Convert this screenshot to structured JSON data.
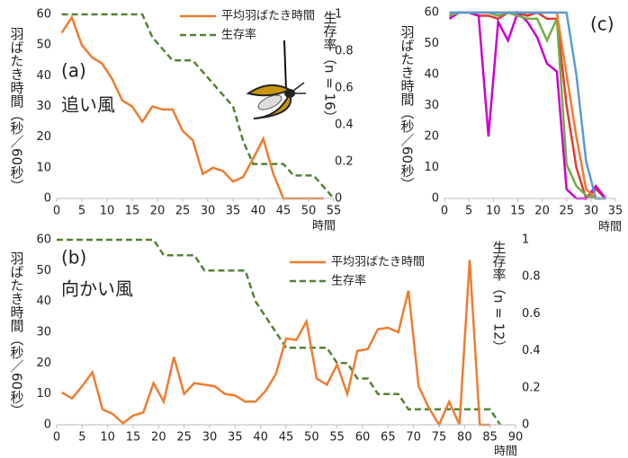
{
  "chart_data": [
    {
      "type": "line",
      "annotations": [
        "(a)",
        "追い風"
      ],
      "xlabel": "時間",
      "ylabel": "羽ばたき時間（秒／60秒）",
      "y2label": "生存率（n = 16）",
      "xlim": [
        0,
        55
      ],
      "xticks": [
        0,
        5,
        10,
        15,
        20,
        25,
        30,
        35,
        40,
        45,
        50,
        55
      ],
      "ylim": [
        0,
        60
      ],
      "yticks": [
        0,
        10,
        20,
        30,
        40,
        50,
        60
      ],
      "y2lim": [
        0,
        1
      ],
      "y2ticks": [
        0,
        0.2,
        0.4,
        0.6,
        0.8,
        1
      ],
      "legend": "top",
      "series": [
        {
          "name": "平均羽ばたき時間",
          "color": "#ed7d31",
          "line_style": "solid",
          "x": [
            1,
            3,
            5,
            7,
            9,
            11,
            13,
            15,
            17,
            19,
            21,
            23,
            25,
            27,
            29,
            31,
            33,
            35,
            37,
            39,
            41,
            43,
            45,
            47,
            49,
            51,
            53
          ],
          "values": [
            54,
            59,
            50,
            46,
            44,
            39,
            32,
            30,
            25,
            30,
            29,
            29,
            22,
            19,
            8,
            10,
            9,
            5.5,
            7,
            13,
            19.5,
            8,
            0,
            0,
            0,
            0,
            0
          ]
        },
        {
          "name": "生存率",
          "color": "#548235",
          "line_style": "dashed",
          "axis": "y2",
          "x": [
            1,
            17,
            19,
            21,
            23,
            25,
            27,
            29,
            31,
            33,
            35,
            37,
            39,
            41,
            43,
            45,
            47,
            49,
            51,
            53,
            55
          ],
          "values": [
            1,
            1,
            0.875,
            0.8125,
            0.75,
            0.75,
            0.75,
            0.6875,
            0.625,
            0.5625,
            0.5,
            0.3125,
            0.1875,
            0.1875,
            0.1875,
            0.1875,
            0.125,
            0.125,
            0.125,
            0.0625,
            0
          ]
        }
      ]
    },
    {
      "type": "line",
      "annotations": [
        "(b)",
        "向かい風"
      ],
      "xlabel": "時間",
      "ylabel": "羽ばたき時間（秒／60秒）",
      "y2label": "生存率（n = 12）",
      "xlim": [
        0,
        90
      ],
      "xticks": [
        0,
        5,
        10,
        15,
        20,
        25,
        30,
        35,
        40,
        45,
        50,
        55,
        60,
        65,
        70,
        75,
        80,
        85,
        90
      ],
      "ylim": [
        0,
        60
      ],
      "yticks": [
        0,
        10,
        20,
        30,
        40,
        50,
        60
      ],
      "y2lim": [
        0,
        1
      ],
      "y2ticks": [
        0,
        0.2,
        0.4,
        0.6,
        0.8,
        1
      ],
      "legend": "right",
      "series": [
        {
          "name": "平均羽ばたき時間",
          "color": "#ed7d31",
          "line_style": "solid",
          "x": [
            1,
            3,
            5,
            7,
            9,
            11,
            13,
            15,
            17,
            19,
            21,
            23,
            25,
            27,
            29,
            31,
            33,
            35,
            37,
            39,
            41,
            43,
            45,
            47,
            49,
            51,
            53,
            55,
            57,
            59,
            61,
            63,
            65,
            67,
            69,
            71,
            73,
            75,
            77,
            79,
            81,
            83,
            85
          ],
          "values": [
            10.5,
            8.5,
            12.5,
            17,
            5,
            3.5,
            0.5,
            3,
            4,
            13.5,
            7.5,
            22,
            10,
            13.5,
            13,
            12.5,
            10,
            9.5,
            7.5,
            7.5,
            11,
            16.5,
            28,
            27.5,
            33.5,
            15,
            13,
            19.5,
            10,
            24,
            24.5,
            31,
            31.5,
            30,
            43.5,
            12.5,
            5.5,
            0,
            7.5,
            0,
            53.5,
            0,
            0
          ]
        },
        {
          "name": "生存率",
          "color": "#548235",
          "line_style": "dashed",
          "axis": "y2",
          "x": [
            0,
            19,
            21,
            27,
            29,
            37,
            39,
            41,
            43,
            45,
            47,
            53,
            55,
            57,
            59,
            61,
            63,
            67,
            69,
            85,
            87
          ],
          "values": [
            1,
            1,
            0.9167,
            0.9167,
            0.8333,
            0.8333,
            0.6667,
            0.5833,
            0.5,
            0.4167,
            0.4167,
            0.4167,
            0.3333,
            0.3333,
            0.25,
            0.25,
            0.1667,
            0.1667,
            0.0833,
            0.0833,
            0
          ]
        }
      ]
    },
    {
      "type": "line",
      "annotations": [
        "(c)"
      ],
      "xlabel": "時間",
      "ylabel": "羽ばたき時間（秒／60秒）",
      "xlim": [
        0,
        35
      ],
      "xticks": [
        0,
        5,
        10,
        15,
        20,
        25,
        30,
        35
      ],
      "ylim": [
        0,
        60
      ],
      "yticks": [
        0,
        10,
        20,
        30,
        40,
        50,
        60
      ],
      "series": [
        {
          "color": "#5b9bd5",
          "line_style": "solid",
          "x": [
            1,
            3,
            5,
            7,
            9,
            11,
            13,
            15,
            17,
            19,
            21,
            23,
            25,
            27,
            29,
            31,
            33
          ],
          "values": [
            60,
            60,
            60,
            60,
            60,
            60,
            60,
            60,
            60,
            60,
            60,
            60,
            60,
            40,
            12,
            0,
            0
          ]
        },
        {
          "color": "#ed7d31",
          "line_style": "solid",
          "x": [
            1,
            3,
            5,
            7,
            9,
            11,
            13,
            15,
            17,
            19,
            21,
            23,
            25,
            27,
            29,
            31,
            33
          ],
          "values": [
            60,
            60,
            60,
            60,
            60,
            60,
            60,
            60,
            60,
            60,
            60,
            60,
            40,
            20,
            3,
            0,
            0
          ]
        },
        {
          "color": "#70ad47",
          "line_style": "solid",
          "x": [
            1,
            3,
            5,
            7,
            9,
            11,
            13,
            15,
            17,
            19,
            21,
            23,
            25,
            27,
            29,
            31,
            33
          ],
          "values": [
            59,
            60,
            60,
            60,
            60,
            59,
            60,
            59,
            58,
            58,
            51,
            58,
            11,
            4,
            1,
            0,
            0
          ]
        },
        {
          "color": "#cc00cc",
          "line_style": "solid",
          "x": [
            1,
            3,
            5,
            7,
            9,
            11,
            13,
            15,
            17,
            19,
            21,
            23,
            25,
            27,
            29,
            31,
            33
          ],
          "values": [
            58,
            60,
            60,
            59,
            20,
            57,
            51,
            60,
            57,
            52,
            43.5,
            41,
            3,
            0,
            0,
            4,
            0
          ]
        },
        {
          "color": "#e03c31",
          "line_style": "solid",
          "x": [
            1,
            3,
            5,
            7,
            9,
            11,
            13,
            15,
            17,
            19,
            21,
            23,
            25,
            27,
            29,
            31,
            33
          ],
          "values": [
            59,
            60,
            60,
            59,
            59,
            58,
            60,
            60,
            59,
            60,
            58,
            58,
            30,
            10,
            0,
            3,
            0
          ]
        }
      ]
    }
  ]
}
